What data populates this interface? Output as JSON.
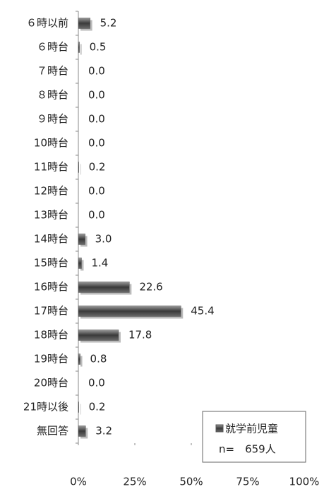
{
  "chart_data": {
    "type": "hbar",
    "categories": [
      "６時以前",
      "６時台",
      "７時台",
      "８時台",
      "９時台",
      "10時台",
      "11時台",
      "12時台",
      "13時台",
      "14時台",
      "15時台",
      "16時台",
      "17時台",
      "18時台",
      "19時台",
      "20時台",
      "21時以後",
      "無回答"
    ],
    "series": [
      {
        "name": "就学前児童",
        "color": "#555555",
        "values": [
          5.2,
          0.5,
          0.0,
          0.0,
          0.0,
          0.0,
          0.2,
          0.0,
          0.0,
          3.0,
          1.4,
          22.6,
          45.4,
          17.8,
          0.8,
          0.0,
          0.2,
          3.2
        ],
        "value_labels": [
          "5.2",
          "0.5",
          "0.0",
          "0.0",
          "0.0",
          "0.0",
          "0.2",
          "0.0",
          "0.0",
          "3.0",
          "1.4",
          "22.6",
          "45.4",
          "17.8",
          "0.8",
          "0.0",
          "0.2",
          "3.2"
        ]
      }
    ],
    "annotation": "n=　659人",
    "xlim": [
      0,
      100
    ],
    "xticks": [
      {
        "value": 0,
        "label": "0%"
      },
      {
        "value": 25,
        "label": "25%"
      },
      {
        "value": 50,
        "label": "50%"
      },
      {
        "value": 75,
        "label": "75%"
      },
      {
        "value": 100,
        "label": "100%"
      }
    ],
    "legend": "bottom-right"
  }
}
